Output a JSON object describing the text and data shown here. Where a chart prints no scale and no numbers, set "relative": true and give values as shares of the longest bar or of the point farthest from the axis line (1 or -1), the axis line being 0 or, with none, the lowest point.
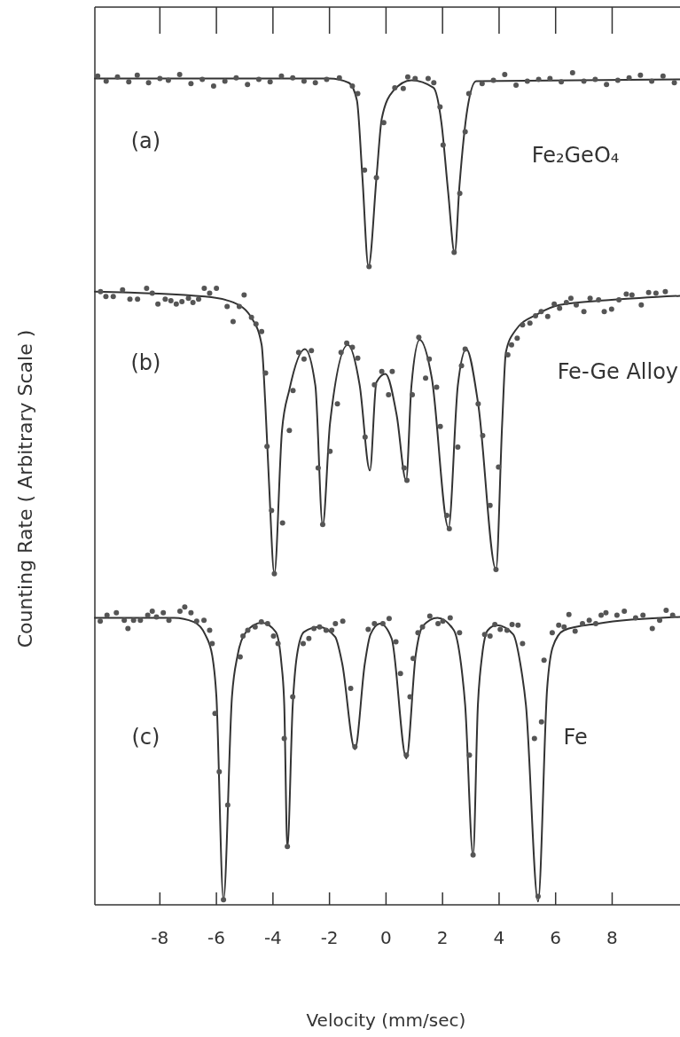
{
  "chart_data": {
    "type": "line",
    "relative": true,
    "xlabel": "Velocity (mm/sec)",
    "ylabel": "Counting Rate ( Arbitrary Scale )",
    "xlim": [
      -10.3,
      10.4
    ],
    "xticks": [
      -8,
      -6,
      -4,
      -2,
      0,
      2,
      4,
      6,
      8
    ],
    "tick_labels": "x",
    "annotations": [
      "(a)",
      "Fe₂GeO₄",
      "(b)",
      "Fe-Ge Alloy",
      "(c)",
      "Fe"
    ],
    "series": [
      {
        "color": "#333333",
        "x": [
          -10.3,
          -2.0,
          -1.32,
          -1.03,
          -0.84,
          -0.62,
          -0.33,
          -0.15,
          0.25,
          0.9,
          1.68,
          1.96,
          2.2,
          2.43,
          2.6,
          2.88,
          3.19,
          10.4
        ],
        "values": [
          0.993,
          0.993,
          0.988,
          0.967,
          0.877,
          0.767,
          0.877,
          0.945,
          0.978,
          0.991,
          0.982,
          0.94,
          0.856,
          0.783,
          0.865,
          0.957,
          0.99,
          0.992
        ]
      },
      {
        "type": "scatter",
        "marker": "circle",
        "color": "#555555",
        "x": [
          -10.2,
          -9.9,
          -9.5,
          -9.1,
          -8.8,
          -8.4,
          -8.0,
          -7.7,
          -7.3,
          -6.9,
          -6.5,
          -6.1,
          -5.7,
          -5.3,
          -4.9,
          -4.5,
          -4.1,
          -3.7,
          -3.3,
          -2.9,
          -2.5,
          -2.1,
          -1.65,
          -1.19,
          -1.0,
          -0.76,
          -0.6,
          -0.34,
          -0.08,
          0.31,
          0.61,
          0.77,
          1.03,
          1.49,
          1.69,
          1.91,
          2.02,
          2.41,
          2.61,
          2.8,
          2.93,
          3.4,
          3.8,
          4.2,
          4.6,
          5.0,
          5.4,
          5.8,
          6.2,
          6.6,
          7.0,
          7.4,
          7.8,
          8.2,
          8.6,
          9.0,
          9.4,
          9.8,
          10.2
        ],
        "values": [
          0.996,
          0.99,
          0.995,
          0.989,
          0.997,
          0.988,
          0.993,
          0.991,
          0.998,
          0.987,
          0.992,
          0.984,
          0.99,
          0.994,
          0.986,
          0.992,
          0.989,
          0.996,
          0.994,
          0.99,
          0.988,
          0.992,
          0.994,
          0.984,
          0.975,
          0.883,
          0.767,
          0.874,
          0.94,
          0.982,
          0.981,
          0.995,
          0.993,
          0.993,
          0.988,
          0.959,
          0.913,
          0.784,
          0.855,
          0.929,
          0.975,
          0.987,
          0.991,
          0.998,
          0.985,
          0.99,
          0.992,
          0.993,
          0.989,
          1.0,
          0.99,
          0.992,
          0.986,
          0.991,
          0.994,
          0.997,
          0.99,
          0.996,
          0.988
        ]
      },
      {
        "color": "#333333",
        "x": [
          -10.3,
          -6.4,
          -5.4,
          -4.73,
          -4.4,
          -4.27,
          -4.14,
          -3.95,
          -3.68,
          -3.42,
          -2.87,
          -2.5,
          -2.24,
          -1.98,
          -1.35,
          -0.93,
          -0.57,
          -0.34,
          -0.02,
          0.38,
          0.71,
          0.9,
          1.19,
          1.62,
          2.21,
          2.54,
          2.84,
          3.26,
          3.89,
          4.11,
          4.24,
          4.57,
          5.36,
          6.14,
          7.98,
          10.4
        ],
        "values": [
          0.737,
          0.731,
          0.724,
          0.704,
          0.673,
          0.602,
          0.508,
          0.398,
          0.57,
          0.619,
          0.668,
          0.624,
          0.456,
          0.579,
          0.673,
          0.624,
          0.522,
          0.628,
          0.638,
          0.588,
          0.51,
          0.624,
          0.679,
          0.633,
          0.453,
          0.624,
          0.668,
          0.602,
          0.403,
          0.579,
          0.664,
          0.69,
          0.71,
          0.721,
          0.727,
          0.732
        ]
      },
      {
        "type": "scatter",
        "marker": "circle",
        "color": "#555555",
        "x": [
          -10.1,
          -9.91,
          -9.65,
          -9.32,
          -9.06,
          -8.79,
          -8.47,
          -8.27,
          -8.07,
          -7.81,
          -7.61,
          -7.42,
          -7.22,
          -6.99,
          -6.83,
          -6.63,
          -6.43,
          -6.24,
          -6.0,
          -5.62,
          -5.41,
          -5.19,
          -5.02,
          -4.76,
          -4.6,
          -4.4,
          -4.26,
          -4.21,
          -3.42,
          -3.29,
          -3.09,
          -2.9,
          -2.64,
          -2.4,
          -1.98,
          -1.72,
          -1.59,
          -1.39,
          -1.19,
          -1.0,
          -0.74,
          -0.41,
          -0.15,
          0.09,
          0.22,
          0.64,
          0.74,
          0.93,
          1.16,
          1.4,
          1.53,
          1.79,
          1.92,
          2.54,
          2.67,
          2.8,
          3.26,
          3.42,
          3.98,
          4.31,
          4.44,
          4.64,
          4.83,
          5.09,
          5.29,
          5.49,
          5.72,
          5.95,
          6.14,
          6.38,
          6.54,
          6.73,
          7.0,
          7.22,
          7.52,
          7.72,
          7.98,
          8.24,
          8.5,
          8.7,
          9.03,
          9.29,
          9.55,
          9.88,
          -4.05,
          -3.95,
          -3.66,
          -2.24,
          2.15,
          2.24,
          3.68,
          3.89
        ],
        "values": [
          0.737,
          0.731,
          0.731,
          0.739,
          0.728,
          0.728,
          0.741,
          0.735,
          0.722,
          0.728,
          0.726,
          0.722,
          0.725,
          0.729,
          0.724,
          0.728,
          0.741,
          0.735,
          0.741,
          0.719,
          0.701,
          0.719,
          0.733,
          0.706,
          0.698,
          0.689,
          0.639,
          0.551,
          0.57,
          0.618,
          0.664,
          0.656,
          0.666,
          0.525,
          0.545,
          0.602,
          0.664,
          0.675,
          0.67,
          0.657,
          0.562,
          0.625,
          0.641,
          0.613,
          0.641,
          0.525,
          0.51,
          0.613,
          0.682,
          0.633,
          0.656,
          0.622,
          0.575,
          0.55,
          0.648,
          0.668,
          0.602,
          0.564,
          0.526,
          0.661,
          0.673,
          0.681,
          0.697,
          0.699,
          0.708,
          0.713,
          0.707,
          0.722,
          0.717,
          0.724,
          0.729,
          0.721,
          0.713,
          0.729,
          0.727,
          0.713,
          0.716,
          0.727,
          0.734,
          0.733,
          0.721,
          0.736,
          0.735,
          0.737,
          0.474,
          0.398,
          0.459,
          0.457,
          0.468,
          0.452,
          0.48,
          0.403
        ]
      },
      {
        "color": "#333333",
        "x": [
          -10.3,
          -7.5,
          -6.8,
          -6.4,
          -6.15,
          -6.0,
          -5.75,
          -5.45,
          -5.25,
          -4.95,
          -4.4,
          -3.9,
          -3.7,
          -3.6,
          -3.49,
          -3.3,
          -3.15,
          -2.9,
          -2.37,
          -1.8,
          -1.55,
          -1.1,
          -0.75,
          -0.55,
          -0.21,
          0.2,
          0.72,
          1.05,
          1.3,
          1.82,
          2.4,
          2.65,
          2.8,
          3.08,
          3.25,
          3.4,
          3.6,
          3.92,
          4.5,
          4.75,
          4.95,
          5.38,
          5.7,
          5.9,
          6.3,
          7.5,
          10.4
        ],
        "values": [
          0.345,
          0.345,
          0.34,
          0.325,
          0.3,
          0.25,
          0.006,
          0.25,
          0.3,
          0.328,
          0.339,
          0.328,
          0.29,
          0.24,
          0.069,
          0.24,
          0.3,
          0.328,
          0.334,
          0.322,
          0.29,
          0.187,
          0.29,
          0.325,
          0.338,
          0.32,
          0.176,
          0.3,
          0.335,
          0.345,
          0.33,
          0.29,
          0.24,
          0.06,
          0.24,
          0.3,
          0.33,
          0.336,
          0.325,
          0.29,
          0.24,
          0.004,
          0.26,
          0.31,
          0.33,
          0.338,
          0.346
        ]
      },
      {
        "type": "scatter",
        "marker": "circle",
        "color": "#555555",
        "x": [
          -10.11,
          -9.87,
          -9.54,
          -9.26,
          -9.13,
          -8.93,
          -8.69,
          -8.43,
          -8.27,
          -8.12,
          -7.88,
          -7.68,
          -7.29,
          -7.12,
          -6.9,
          -6.7,
          -6.44,
          -6.24,
          -6.15,
          -5.16,
          -5.06,
          -4.89,
          -4.63,
          -4.41,
          -4.19,
          -3.98,
          -3.82,
          -2.93,
          -2.73,
          -2.55,
          -2.35,
          -2.12,
          -1.92,
          -1.79,
          -1.53,
          -0.63,
          -0.41,
          -0.11,
          0.11,
          0.35,
          0.51,
          0.96,
          1.13,
          1.29,
          1.55,
          1.84,
          2.01,
          2.27,
          2.6,
          3.49,
          3.68,
          3.85,
          4.04,
          4.28,
          4.46,
          4.67,
          4.83,
          5.59,
          5.88,
          6.11,
          6.3,
          6.47,
          6.69,
          6.95,
          7.19,
          7.42,
          7.61,
          7.78,
          8.17,
          8.43,
          8.83,
          9.09,
          9.42,
          9.68,
          9.91,
          10.14,
          -6.05,
          -5.9,
          -5.75,
          -5.6,
          -3.6,
          -3.49,
          -3.3,
          -1.25,
          -1.1,
          0.72,
          0.85,
          2.95,
          3.08,
          5.25,
          5.38,
          5.5
        ],
        "values": [
          0.341,
          0.348,
          0.351,
          0.342,
          0.332,
          0.342,
          0.342,
          0.348,
          0.353,
          0.346,
          0.351,
          0.342,
          0.353,
          0.358,
          0.351,
          0.341,
          0.342,
          0.33,
          0.314,
          0.298,
          0.323,
          0.33,
          0.334,
          0.34,
          0.338,
          0.323,
          0.314,
          0.314,
          0.32,
          0.332,
          0.334,
          0.33,
          0.33,
          0.338,
          0.341,
          0.331,
          0.338,
          0.338,
          0.344,
          0.316,
          0.278,
          0.296,
          0.327,
          0.334,
          0.347,
          0.338,
          0.341,
          0.345,
          0.327,
          0.325,
          0.323,
          0.337,
          0.331,
          0.33,
          0.337,
          0.336,
          0.314,
          0.294,
          0.327,
          0.336,
          0.334,
          0.349,
          0.329,
          0.338,
          0.342,
          0.338,
          0.348,
          0.351,
          0.348,
          0.353,
          0.345,
          0.348,
          0.332,
          0.342,
          0.354,
          0.348,
          0.23,
          0.16,
          0.006,
          0.12,
          0.2,
          0.07,
          0.25,
          0.26,
          0.19,
          0.18,
          0.25,
          0.18,
          0.06,
          0.2,
          0.01,
          0.22
        ]
      }
    ]
  }
}
